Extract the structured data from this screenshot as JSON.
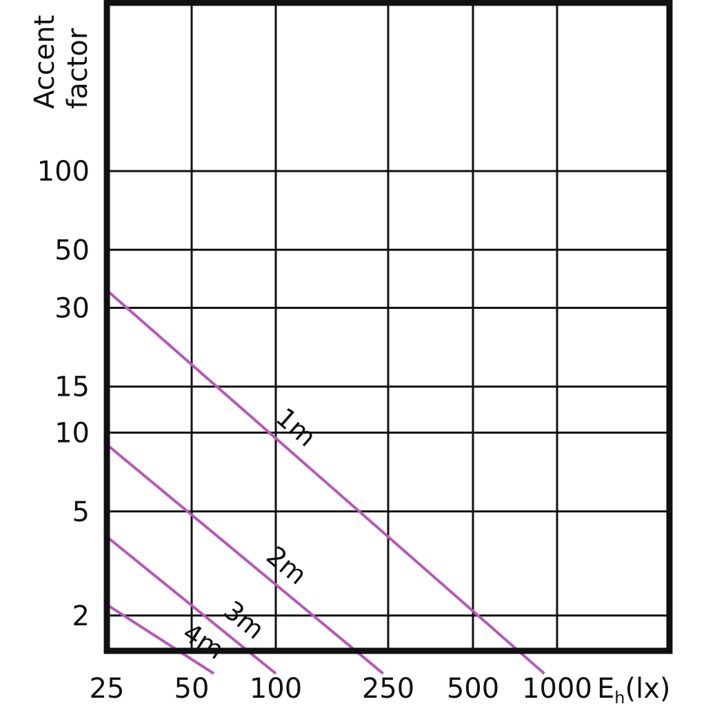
{
  "chart_data": {
    "type": "line",
    "ylabel": [
      "Accent",
      "factor"
    ],
    "xlabel_main": "E",
    "xlabel_sub": "h",
    "xlabel_unit": "(lx)",
    "x_tick_labels": [
      "25",
      "50",
      "100",
      "250",
      "500",
      "1000"
    ],
    "x_ticks": [
      25,
      50,
      100,
      250,
      500,
      1000
    ],
    "y_tick_labels": [
      "100",
      "50",
      "30",
      "15",
      "10",
      "5",
      "2"
    ],
    "y_ticks": [
      100,
      50,
      30,
      15,
      10,
      5,
      2
    ],
    "series_color": "#b659b6",
    "series": [
      {
        "name": "1m",
        "x": [
          25,
          900
        ],
        "y": [
          35,
          1.2
        ]
      },
      {
        "name": "2m",
        "x": [
          25,
          240
        ],
        "y": [
          9,
          1.2
        ]
      },
      {
        "name": "3m",
        "x": [
          25,
          100
        ],
        "y": [
          4,
          1.2
        ]
      },
      {
        "name": "4m",
        "x": [
          25,
          60
        ],
        "y": [
          2.2,
          1.2
        ]
      }
    ]
  }
}
